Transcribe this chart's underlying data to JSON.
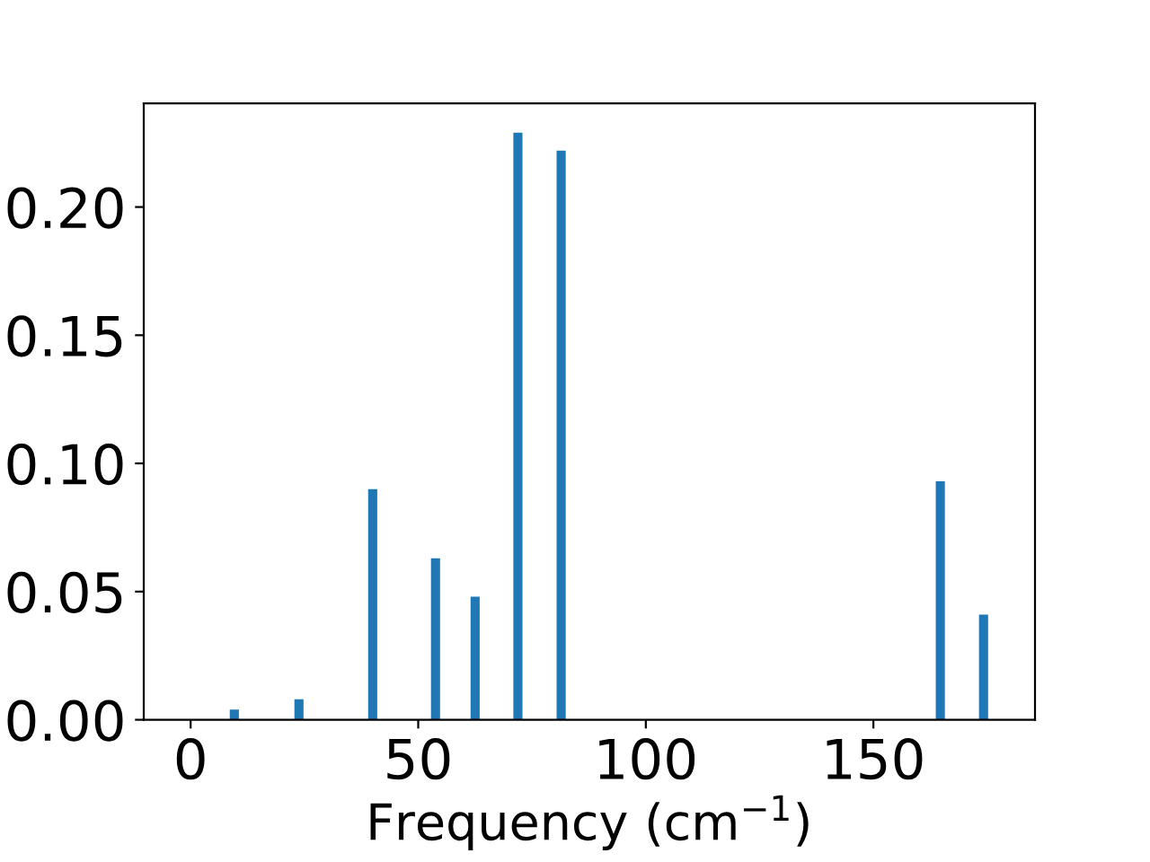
{
  "chart_data": {
    "type": "bar",
    "xlabel": "Frequency (cm$^{−1}$)",
    "x": [
      9.6,
      23.8,
      40.0,
      53.8,
      62.5,
      71.9,
      81.4,
      164.7,
      174.2
    ],
    "values": [
      0.004,
      0.008,
      0.09,
      0.063,
      0.048,
      0.229,
      0.222,
      0.093,
      0.041
    ],
    "color": "#1f77b4",
    "xlim": [
      -10.3,
      185.5
    ],
    "xticks": [
      0,
      50,
      100,
      150
    ],
    "ylim": [
      0,
      0.2404
    ],
    "yticks": [
      {
        "value": 0,
        "label": "0.00"
      },
      {
        "value": 0.05,
        "label": "0.05"
      },
      {
        "value": 0.1,
        "label": "0.10"
      },
      {
        "value": 0.15,
        "label": "0.15"
      },
      {
        "value": 0.2,
        "label": "0.20"
      }
    ],
    "grid": false
  }
}
